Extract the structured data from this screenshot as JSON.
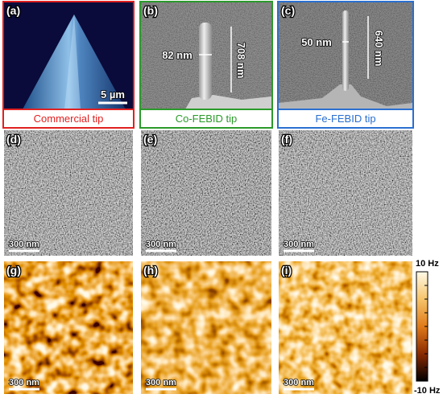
{
  "panels": [
    {
      "label": "(a)",
      "caption": "Commercial tip",
      "scale_bar": "5 µm"
    },
    {
      "label": "(b)",
      "caption": "Co-FEBID tip",
      "annotations": [
        "82 nm",
        "708 nm"
      ]
    },
    {
      "label": "(c)",
      "caption": "Fe-FEBID tip",
      "annotations": [
        "50 nm",
        "640 nm"
      ]
    },
    {
      "label": "(d)",
      "scale_bar": "300 nm"
    },
    {
      "label": "(e)",
      "scale_bar": "300 nm"
    },
    {
      "label": "(f)",
      "scale_bar": "300 nm"
    },
    {
      "label": "(g)",
      "scale_bar": "300 nm"
    },
    {
      "label": "(h)",
      "scale_bar": "300 nm"
    },
    {
      "label": "(i)",
      "scale_bar": "300 nm"
    }
  ],
  "colorbar": {
    "max_label": "10 Hz",
    "min_label": "-10 Hz"
  }
}
